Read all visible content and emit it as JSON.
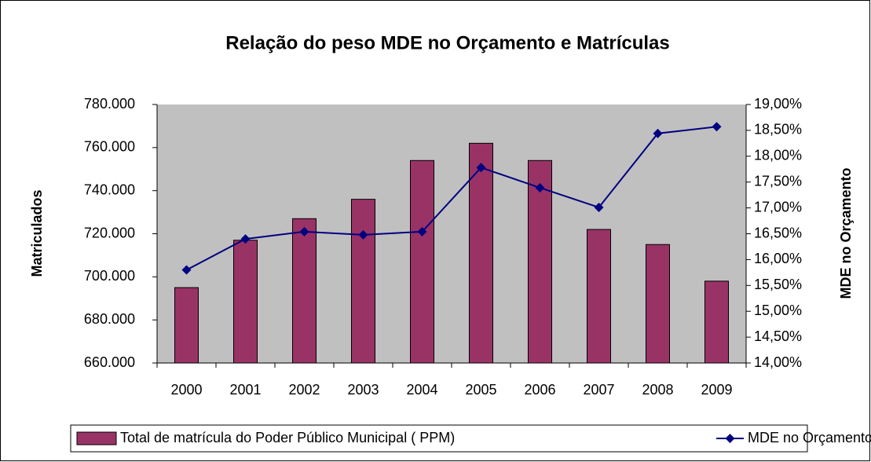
{
  "chart_data": {
    "type": "bar_line",
    "title": "Relação do peso MDE no Orçamento e Matrículas",
    "ylabel": "Matriculados",
    "y2label": "MDE no Orçamento",
    "categories": [
      "2000",
      "2001",
      "2002",
      "2003",
      "2004",
      "2005",
      "2006",
      "2007",
      "2008",
      "2009"
    ],
    "series": [
      {
        "name": "Total de matrícula do Poder Público Municipal ( PPM)",
        "type": "bar",
        "color": "#993366",
        "values": [
          695000,
          717000,
          727000,
          736000,
          754000,
          762000,
          754000,
          722000,
          715000,
          698000
        ]
      },
      {
        "name": "MDE no Orçamento",
        "type": "line",
        "color": "#000080",
        "axis": "y2",
        "values": [
          15.8,
          16.4,
          16.54,
          16.48,
          16.54,
          17.78,
          17.39,
          17.01,
          18.44,
          18.57
        ]
      }
    ],
    "ylim": [
      660000,
      780000
    ],
    "yticks": [
      {
        "value": 660000,
        "label": "660.000"
      },
      {
        "value": 680000,
        "label": "680.000"
      },
      {
        "value": 700000,
        "label": "700.000"
      },
      {
        "value": 720000,
        "label": "720.000"
      },
      {
        "value": 740000,
        "label": "740.000"
      },
      {
        "value": 760000,
        "label": "760.000"
      },
      {
        "value": 780000,
        "label": "780.000"
      }
    ],
    "y2lim": [
      14,
      19
    ],
    "y2ticks": [
      {
        "value": 14,
        "label": "14,00%"
      },
      {
        "value": 14.5,
        "label": "14,50%"
      },
      {
        "value": 15,
        "label": "15,00%"
      },
      {
        "value": 15.5,
        "label": "15,50%"
      },
      {
        "value": 16,
        "label": "16,00%"
      },
      {
        "value": 16.5,
        "label": "16,50%"
      },
      {
        "value": 17,
        "label": "17,00%"
      },
      {
        "value": 17.5,
        "label": "17,50%"
      },
      {
        "value": 18,
        "label": "18,00%"
      },
      {
        "value": 18.5,
        "label": "18,50%"
      },
      {
        "value": 19,
        "label": "19,00%"
      }
    ],
    "legend": "bottom"
  }
}
